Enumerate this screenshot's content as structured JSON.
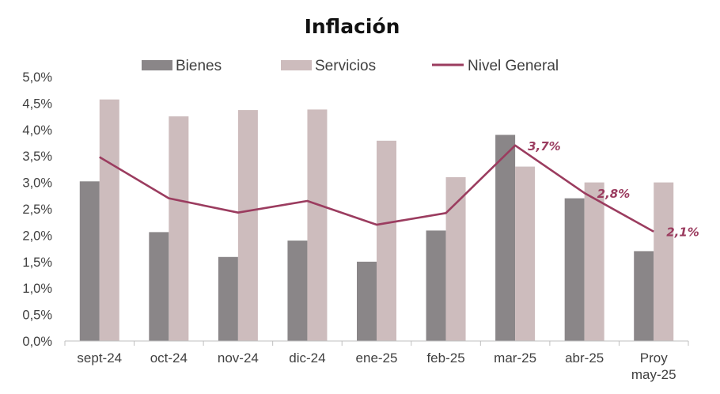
{
  "colors": {
    "bienes": "#8a8688",
    "servicios": "#cdbcbd",
    "nivel_general": "#9b3c5f",
    "axis": "#bfbfbf",
    "text": "#404040"
  },
  "chart_data": {
    "type": "bar",
    "title": "Inflación",
    "categories": [
      [
        "sept-24"
      ],
      [
        "oct-24"
      ],
      [
        "nov-24"
      ],
      [
        "dic-24"
      ],
      [
        "ene-25"
      ],
      [
        "feb-25"
      ],
      [
        "mar-25"
      ],
      [
        "abr-25"
      ],
      [
        "Proy",
        "may-25"
      ]
    ],
    "ylim": [
      0,
      5
    ],
    "yticks": [
      0,
      0.5,
      1,
      1.5,
      2,
      2.5,
      3,
      3.5,
      4,
      4.5,
      5
    ],
    "ytick_labels": [
      "0,0%",
      "0,5%",
      "1,0%",
      "1,5%",
      "2,0%",
      "2,5%",
      "3,0%",
      "3,5%",
      "4,0%",
      "4,5%",
      "5,0%"
    ],
    "grid": false,
    "legend_position": "top",
    "series": [
      {
        "name": "Bienes",
        "type": "bar",
        "color": "#8a8688",
        "values": [
          3.02,
          2.06,
          1.59,
          1.9,
          1.5,
          2.09,
          3.9,
          2.7,
          1.7
        ]
      },
      {
        "name": "Servicios",
        "type": "bar",
        "color": "#cdbcbd",
        "values": [
          4.57,
          4.25,
          4.37,
          4.38,
          3.79,
          3.1,
          3.3,
          3.0,
          3.0
        ]
      },
      {
        "name": "Nivel General",
        "type": "line",
        "color": "#9b3c5f",
        "values": [
          3.48,
          2.7,
          2.43,
          2.65,
          2.2,
          2.42,
          3.7,
          2.8,
          2.07
        ]
      }
    ],
    "annotations": [
      {
        "category_index": 6,
        "text": "3,7%"
      },
      {
        "category_index": 7,
        "text": "2,8%"
      },
      {
        "category_index": 8,
        "text": "2,1%"
      }
    ]
  }
}
